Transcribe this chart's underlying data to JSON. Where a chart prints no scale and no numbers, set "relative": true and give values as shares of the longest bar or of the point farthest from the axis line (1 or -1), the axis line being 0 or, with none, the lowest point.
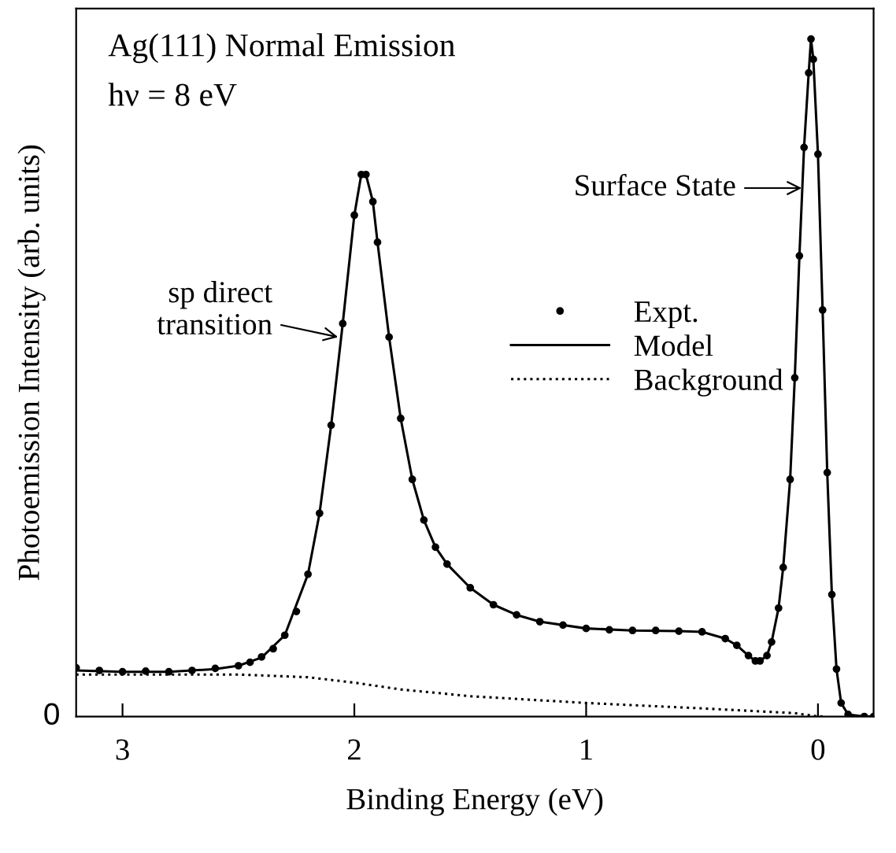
{
  "chart_data": {
    "type": "line",
    "relative": true,
    "xlabel": "Binding Energy (eV)",
    "ylabel": "Photoemission Intensity (arb. units)",
    "xlim": [
      3.2,
      -0.24
    ],
    "xticks": [
      3,
      2,
      1,
      0
    ],
    "legend": "right",
    "annotations": [
      "Ag(111) Normal Emission",
      "hν = 8 eV",
      {
        "text": "sp direct\ntransition",
        "x": 2.07,
        "y": 0.56
      },
      {
        "text": "Surface State",
        "x": 0.07,
        "y": 0.78
      },
      "0"
    ],
    "series": [
      {
        "name": "Expt.",
        "type": "scatter",
        "marker": "circle",
        "color": "#000000",
        "x": [
          3.2,
          3.1,
          3.0,
          2.9,
          2.8,
          2.7,
          2.6,
          2.5,
          2.45,
          2.4,
          2.35,
          2.3,
          2.25,
          2.2,
          2.15,
          2.1,
          2.05,
          2.0,
          1.97,
          1.95,
          1.92,
          1.9,
          1.85,
          1.8,
          1.75,
          1.7,
          1.65,
          1.6,
          1.5,
          1.4,
          1.3,
          1.2,
          1.1,
          1.0,
          0.9,
          0.8,
          0.7,
          0.6,
          0.5,
          0.4,
          0.35,
          0.3,
          0.27,
          0.25,
          0.22,
          0.2,
          0.17,
          0.15,
          0.12,
          0.1,
          0.08,
          0.06,
          0.04,
          0.03,
          0.02,
          0.0,
          -0.02,
          -0.04,
          -0.06,
          -0.08,
          -0.1,
          -0.13,
          -0.2,
          -0.24
        ],
        "values": [
          0.072,
          0.068,
          0.066,
          0.067,
          0.066,
          0.068,
          0.071,
          0.075,
          0.08,
          0.088,
          0.1,
          0.12,
          0.155,
          0.21,
          0.3,
          0.43,
          0.58,
          0.74,
          0.8,
          0.8,
          0.76,
          0.7,
          0.56,
          0.44,
          0.35,
          0.29,
          0.25,
          0.225,
          0.19,
          0.165,
          0.15,
          0.14,
          0.135,
          0.13,
          0.128,
          0.127,
          0.127,
          0.126,
          0.125,
          0.115,
          0.105,
          0.09,
          0.082,
          0.082,
          0.09,
          0.11,
          0.16,
          0.22,
          0.35,
          0.5,
          0.68,
          0.84,
          0.95,
          1.0,
          0.97,
          0.83,
          0.6,
          0.36,
          0.18,
          0.07,
          0.02,
          0.003,
          0.0,
          0.0
        ]
      },
      {
        "name": "Model",
        "line_style": "solid",
        "color": "#000000",
        "x": [
          3.2,
          3.0,
          2.8,
          2.6,
          2.5,
          2.4,
          2.3,
          2.2,
          2.15,
          2.1,
          2.05,
          2.0,
          1.97,
          1.95,
          1.92,
          1.9,
          1.85,
          1.8,
          1.75,
          1.7,
          1.65,
          1.6,
          1.5,
          1.4,
          1.3,
          1.2,
          1.0,
          0.8,
          0.6,
          0.5,
          0.4,
          0.35,
          0.3,
          0.27,
          0.25,
          0.22,
          0.2,
          0.17,
          0.15,
          0.12,
          0.1,
          0.08,
          0.06,
          0.04,
          0.03,
          0.02,
          0.0,
          -0.02,
          -0.04,
          -0.06,
          -0.08,
          -0.1,
          -0.13,
          -0.2,
          -0.24
        ],
        "values": [
          0.068,
          0.066,
          0.066,
          0.07,
          0.075,
          0.087,
          0.12,
          0.21,
          0.3,
          0.43,
          0.58,
          0.74,
          0.8,
          0.8,
          0.76,
          0.7,
          0.56,
          0.44,
          0.35,
          0.29,
          0.25,
          0.225,
          0.19,
          0.165,
          0.15,
          0.14,
          0.13,
          0.127,
          0.126,
          0.125,
          0.115,
          0.105,
          0.09,
          0.082,
          0.082,
          0.09,
          0.11,
          0.16,
          0.22,
          0.35,
          0.5,
          0.68,
          0.84,
          0.95,
          1.0,
          0.97,
          0.83,
          0.6,
          0.36,
          0.18,
          0.07,
          0.02,
          0.003,
          0.0,
          0.0
        ]
      },
      {
        "name": "Background",
        "line_style": "dotted",
        "color": "#000000",
        "x": [
          3.2,
          2.5,
          2.2,
          2.0,
          1.8,
          1.5,
          1.0,
          0.5,
          0.1,
          0.02,
          -0.02
        ],
        "values": [
          0.062,
          0.062,
          0.058,
          0.05,
          0.04,
          0.03,
          0.02,
          0.012,
          0.005,
          0.001,
          0.0
        ]
      }
    ]
  }
}
